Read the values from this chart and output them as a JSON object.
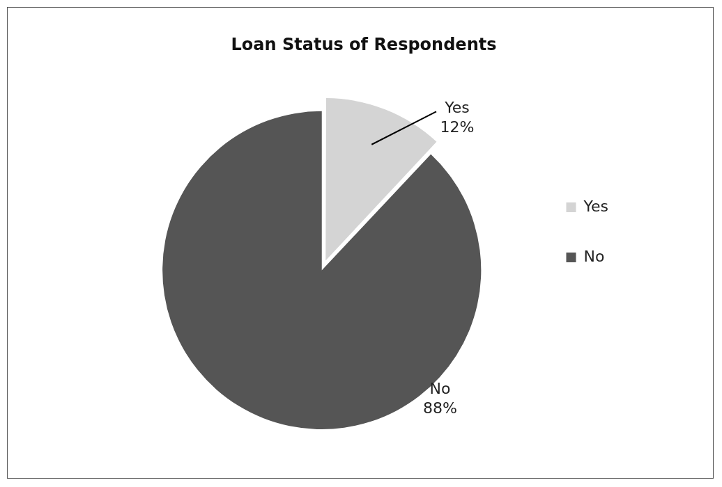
{
  "chart_data": {
    "type": "pie",
    "title": "Loan Status of Respondents",
    "categories": [
      "Yes",
      "No"
    ],
    "values": [
      12,
      88
    ],
    "colors": [
      "#d4d4d4",
      "#555555"
    ],
    "value_labels": [
      "12%",
      "88%"
    ],
    "legend": "right"
  }
}
